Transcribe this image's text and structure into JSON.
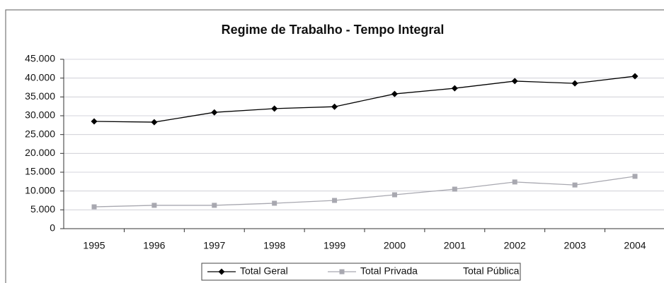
{
  "chart_data": {
    "type": "line",
    "title": "Regime de Trabalho - Tempo Integral",
    "categories": [
      "1995",
      "1996",
      "1997",
      "1998",
      "1999",
      "2000",
      "2001",
      "2002",
      "2003",
      "2004"
    ],
    "series": [
      {
        "name": "Total Geral",
        "color": "#000000",
        "marker": "diamond",
        "values": [
          28500,
          28300,
          30900,
          31900,
          32400,
          35800,
          37300,
          39200,
          38600,
          40500
        ]
      },
      {
        "name": "Total Privada",
        "color": "#a8a8b0",
        "marker": "square",
        "values": [
          5800,
          6200,
          6200,
          6750,
          7500,
          9000,
          10500,
          12400,
          11600,
          13900
        ]
      },
      {
        "name": "Total Pública",
        "color": "#ffffff",
        "marker": "none",
        "values": [
          null,
          null,
          null,
          null,
          null,
          null,
          null,
          null,
          null,
          null
        ]
      }
    ],
    "ylim": [
      0,
      45000
    ],
    "yticks": [
      {
        "value": 0,
        "label": "0"
      },
      {
        "value": 5000,
        "label": "5.000"
      },
      {
        "value": 10000,
        "label": "10.000"
      },
      {
        "value": 15000,
        "label": "15.000"
      },
      {
        "value": 20000,
        "label": "20.000"
      },
      {
        "value": 25000,
        "label": "25.000"
      },
      {
        "value": 30000,
        "label": "30.000"
      },
      {
        "value": 35000,
        "label": "35.000"
      },
      {
        "value": 40000,
        "label": "40.000"
      },
      {
        "value": 45000,
        "label": "45.000"
      }
    ],
    "grid": true,
    "legend": "bottom"
  }
}
